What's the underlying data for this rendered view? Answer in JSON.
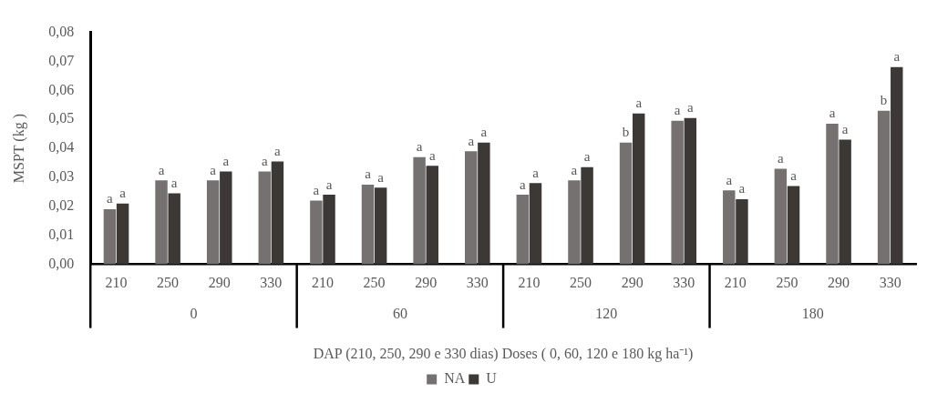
{
  "chart_data": {
    "type": "bar",
    "ylabel": "MSPT (kg )",
    "xlabel": "DAP (210, 250, 290 e 330 dias) Doses ( 0, 60, 120 e 180 kg ha⁻¹)",
    "categories": [
      "210",
      "250",
      "290",
      "330",
      "210",
      "250",
      "290",
      "330",
      "210",
      "250",
      "290",
      "330",
      "210",
      "250",
      "290",
      "330"
    ],
    "annotations": [
      "0",
      "60",
      "120",
      "180"
    ],
    "series": [
      {
        "name": "NA",
        "color": "#767171",
        "values": [
          0.019,
          0.029,
          0.029,
          0.032,
          0.022,
          0.0275,
          0.037,
          0.039,
          0.024,
          0.029,
          0.042,
          0.0495,
          0.0255,
          0.033,
          0.0485,
          0.053
        ],
        "value_labels": [
          "a",
          "a",
          "a",
          "a",
          "a",
          "a",
          "a",
          "a",
          "a",
          "a",
          "b",
          "a",
          "a",
          "a",
          "a",
          "b"
        ]
      },
      {
        "name": "U",
        "color": "#3b3836",
        "values": [
          0.021,
          0.0245,
          0.032,
          0.0355,
          0.024,
          0.0265,
          0.034,
          0.042,
          0.028,
          0.0335,
          0.052,
          0.0505,
          0.0225,
          0.027,
          0.043,
          0.068
        ],
        "value_labels": [
          "a",
          "a",
          "a",
          "a",
          "a",
          "a",
          "a",
          "a",
          "a",
          "a",
          "a",
          "a",
          "a",
          "a",
          "a",
          "a"
        ]
      }
    ],
    "ylim": [
      0,
      0.08
    ],
    "yticks": [
      {
        "value": 0,
        "label": "0,00"
      },
      {
        "value": 0.01,
        "label": "0,01"
      },
      {
        "value": 0.02,
        "label": "0,02"
      },
      {
        "value": 0.03,
        "label": "0,03"
      },
      {
        "value": 0.04,
        "label": "0,04"
      },
      {
        "value": 0.05,
        "label": "0,05"
      },
      {
        "value": 0.06,
        "label": "0,06"
      },
      {
        "value": 0.07,
        "label": "0,07"
      },
      {
        "value": 0.08,
        "label": "0,08"
      }
    ],
    "grid": false,
    "legend": "bottom"
  }
}
